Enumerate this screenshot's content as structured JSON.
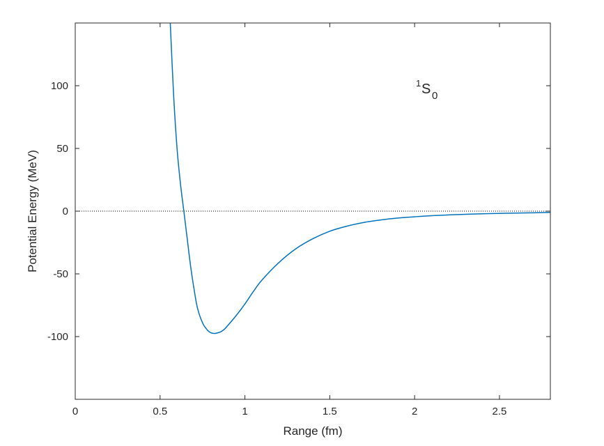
{
  "chart_data": {
    "type": "line",
    "title": "",
    "xlabel": "Range (fm)",
    "ylabel": "Potential Energy (MeV)",
    "xlim": [
      0,
      2.8
    ],
    "ylim": [
      -150,
      150
    ],
    "xticks": [
      0,
      0.5,
      1,
      1.5,
      2,
      2.5
    ],
    "xtick_labels": [
      "0",
      "0.5",
      "1",
      "1.5",
      "2",
      "2.5"
    ],
    "yticks": [
      -100,
      -50,
      0,
      50,
      100
    ],
    "ytick_labels": [
      "-100",
      "-50",
      "0",
      "50",
      "100"
    ],
    "grid": false,
    "annotation": {
      "superscript": "1",
      "main": "S",
      "subscript": "0"
    },
    "reference_line": {
      "y": 0,
      "style": "dotted",
      "color": "#000000"
    },
    "series": [
      {
        "color": "#0072BD",
        "x": [
          0.56,
          0.58,
          0.6,
          0.62,
          0.64,
          0.66,
          0.68,
          0.7,
          0.72,
          0.75,
          0.78,
          0.8,
          0.82,
          0.84,
          0.86,
          0.88,
          0.9,
          0.95,
          1.0,
          1.05,
          1.1,
          1.2,
          1.3,
          1.4,
          1.5,
          1.6,
          1.7,
          1.8,
          1.9,
          2.0,
          2.1,
          2.2,
          2.3,
          2.4,
          2.5,
          2.6,
          2.7,
          2.8
        ],
        "y": [
          150,
          92,
          50,
          22,
          0,
          -22,
          -44,
          -62,
          -77,
          -89,
          -95,
          -97,
          -97.5,
          -97,
          -96,
          -94,
          -91,
          -83,
          -74,
          -64,
          -55,
          -41,
          -30,
          -22,
          -16,
          -12,
          -9,
          -7,
          -5.5,
          -4.5,
          -3.6,
          -3,
          -2.5,
          -2.1,
          -1.8,
          -1.5,
          -1.3,
          -1
        ]
      }
    ]
  }
}
